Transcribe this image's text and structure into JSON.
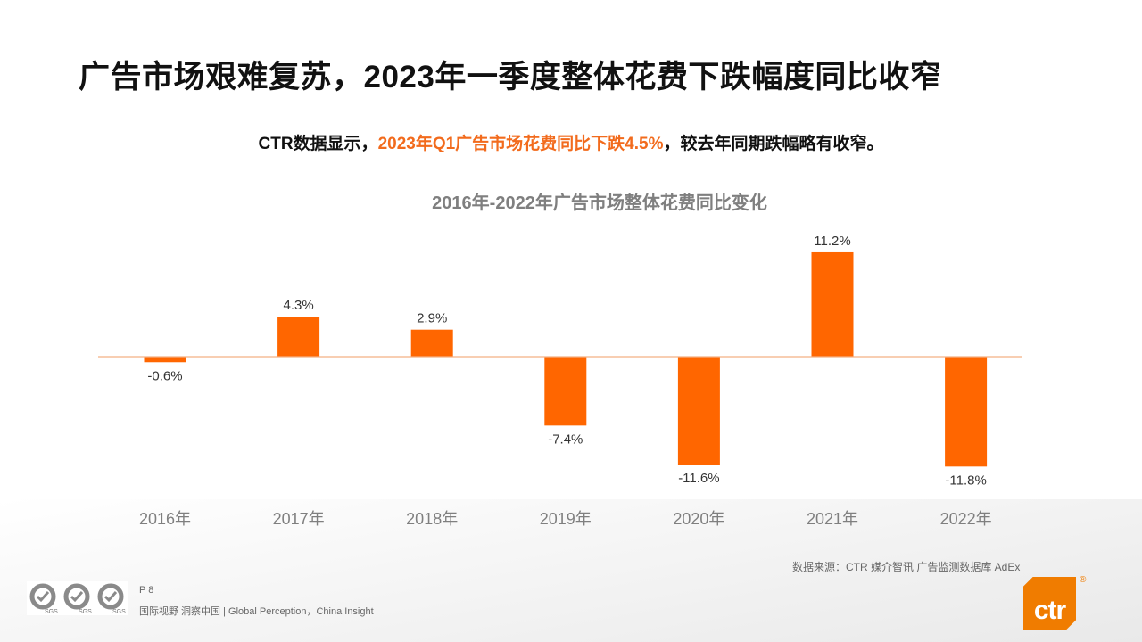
{
  "title": "广告市场艰难复苏，2023年一季度整体花费下跌幅度同比收窄",
  "subtitle": {
    "prefix": "CTR数据显示，",
    "highlight": "2023年Q1广告市场花费同比下跌4.5%",
    "suffix": "，较去年同期跌幅略有收窄。"
  },
  "colors": {
    "bar": "#ff6600",
    "highlight": "#f26b1d",
    "axis": "#f4b183",
    "logo": "#f07c00"
  },
  "chart_data": {
    "type": "bar",
    "title": "2016年-2022年广告市场整体花费同比变化",
    "categories": [
      "2016年",
      "2017年",
      "2018年",
      "2019年",
      "2020年",
      "2021年",
      "2022年"
    ],
    "values": [
      -0.6,
      4.3,
      2.9,
      -7.4,
      -11.6,
      11.2,
      -11.8
    ],
    "value_labels": [
      "-0.6%",
      "4.3%",
      "2.9%",
      "-7.4%",
      "-11.6%",
      "11.2%",
      "-11.8%"
    ],
    "unit": "%",
    "grid": false,
    "legend": "none"
  },
  "footer": {
    "source": "数据来源：CTR 媒介智讯 广告监测数据库 AdEx",
    "page": "P 8",
    "slogan": "国际视野  洞察中国 |  Global Perception，China Insight",
    "logo_text": "ctr",
    "sgs_marks": [
      "SGS",
      "SGS",
      "SGS"
    ]
  }
}
